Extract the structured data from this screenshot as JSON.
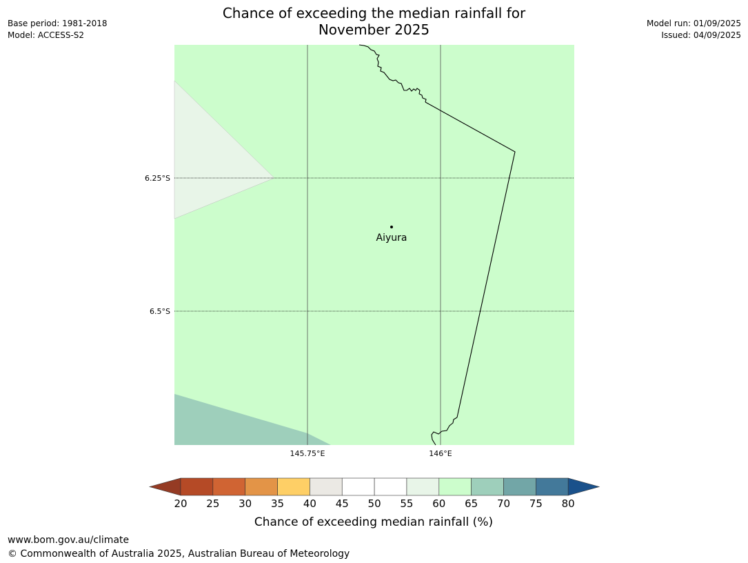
{
  "header": {
    "base_period": "Base period: 1981-2018",
    "model": "Model: ACCESS-S2",
    "title_line1": "Chance of exceeding the median rainfall for",
    "title_line2": "November 2025",
    "model_run": "Model run: 01/09/2025",
    "issued": "Issued: 04/09/2025"
  },
  "map": {
    "lat_labels": [
      "6.25°S",
      "6.5°S"
    ],
    "lon_labels": [
      "145.75°E",
      "146°E"
    ],
    "place_name": "Aiyura",
    "region_colors": {
      "background": "#ccfdcc",
      "region_55_60": "#e8f5e8",
      "region_65_70": "#9ecfbb"
    }
  },
  "legend": {
    "title": "Chance of exceeding median rainfall (%)",
    "ticks": [
      "20",
      "25",
      "30",
      "35",
      "40",
      "45",
      "50",
      "55",
      "60",
      "65",
      "70",
      "75",
      "80"
    ],
    "bins": [
      {
        "range": "<20",
        "color": "#953b24"
      },
      {
        "range": "20-25",
        "color": "#b54a26"
      },
      {
        "range": "25-30",
        "color": "#d06433"
      },
      {
        "range": "30-35",
        "color": "#e39447"
      },
      {
        "range": "35-40",
        "color": "#fecf66"
      },
      {
        "range": "40-45",
        "color": "#ebe9e4"
      },
      {
        "range": "45-50",
        "color": "#ffffff"
      },
      {
        "range": "50-55",
        "color": "#ffffff"
      },
      {
        "range": "55-60",
        "color": "#e8f5e8"
      },
      {
        "range": "60-65",
        "color": "#ccfdcc"
      },
      {
        "range": "65-70",
        "color": "#9ecfbb"
      },
      {
        "range": "70-75",
        "color": "#72a6a7"
      },
      {
        "range": "75-80",
        "color": "#43799a"
      },
      {
        "range": ">80",
        "color": "#1a518b"
      }
    ]
  },
  "footer": {
    "url": "www.bom.gov.au/climate",
    "copyright": "© Commonwealth of Australia 2025, Australian Bureau of Meteorology"
  }
}
